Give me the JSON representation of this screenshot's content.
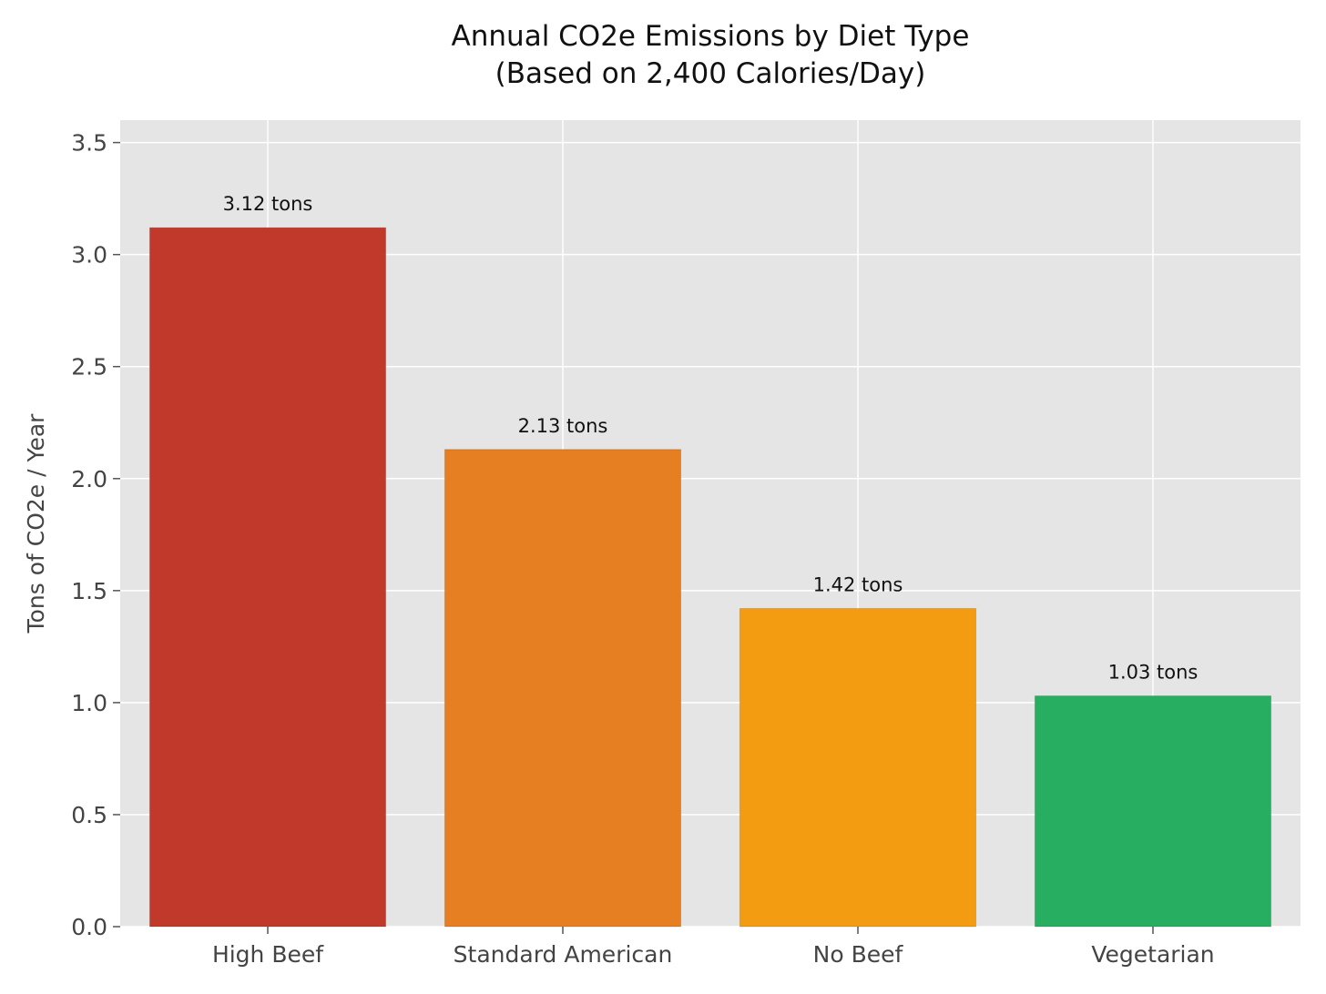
{
  "chart_data": {
    "type": "bar",
    "title": "Annual CO2e Emissions by Diet Type",
    "subtitle": "(Based on 2,400 Calories/Day)",
    "xlabel": "",
    "ylabel": "Tons of CO2e / Year",
    "categories": [
      "High Beef",
      "Standard American",
      "No Beef",
      "Vegetarian"
    ],
    "values": [
      3.12,
      2.13,
      1.42,
      1.03
    ],
    "data_labels": [
      "3.12 tons",
      "2.13 tons",
      "1.42 tons",
      "1.03 tons"
    ],
    "colors": [
      "#c0392b",
      "#e67e22",
      "#f39c12",
      "#27ae60"
    ],
    "ylim": [
      0,
      3.6
    ],
    "yticks": [
      0.0,
      0.5,
      1.0,
      1.5,
      2.0,
      2.5,
      3.0,
      3.5
    ],
    "ytick_labels": [
      "0.0",
      "0.5",
      "1.0",
      "1.5",
      "2.0",
      "2.5",
      "3.0",
      "3.5"
    ],
    "grid": true,
    "legend": false,
    "plot_background": "#e5e5e5",
    "grid_color": "#ffffff"
  }
}
